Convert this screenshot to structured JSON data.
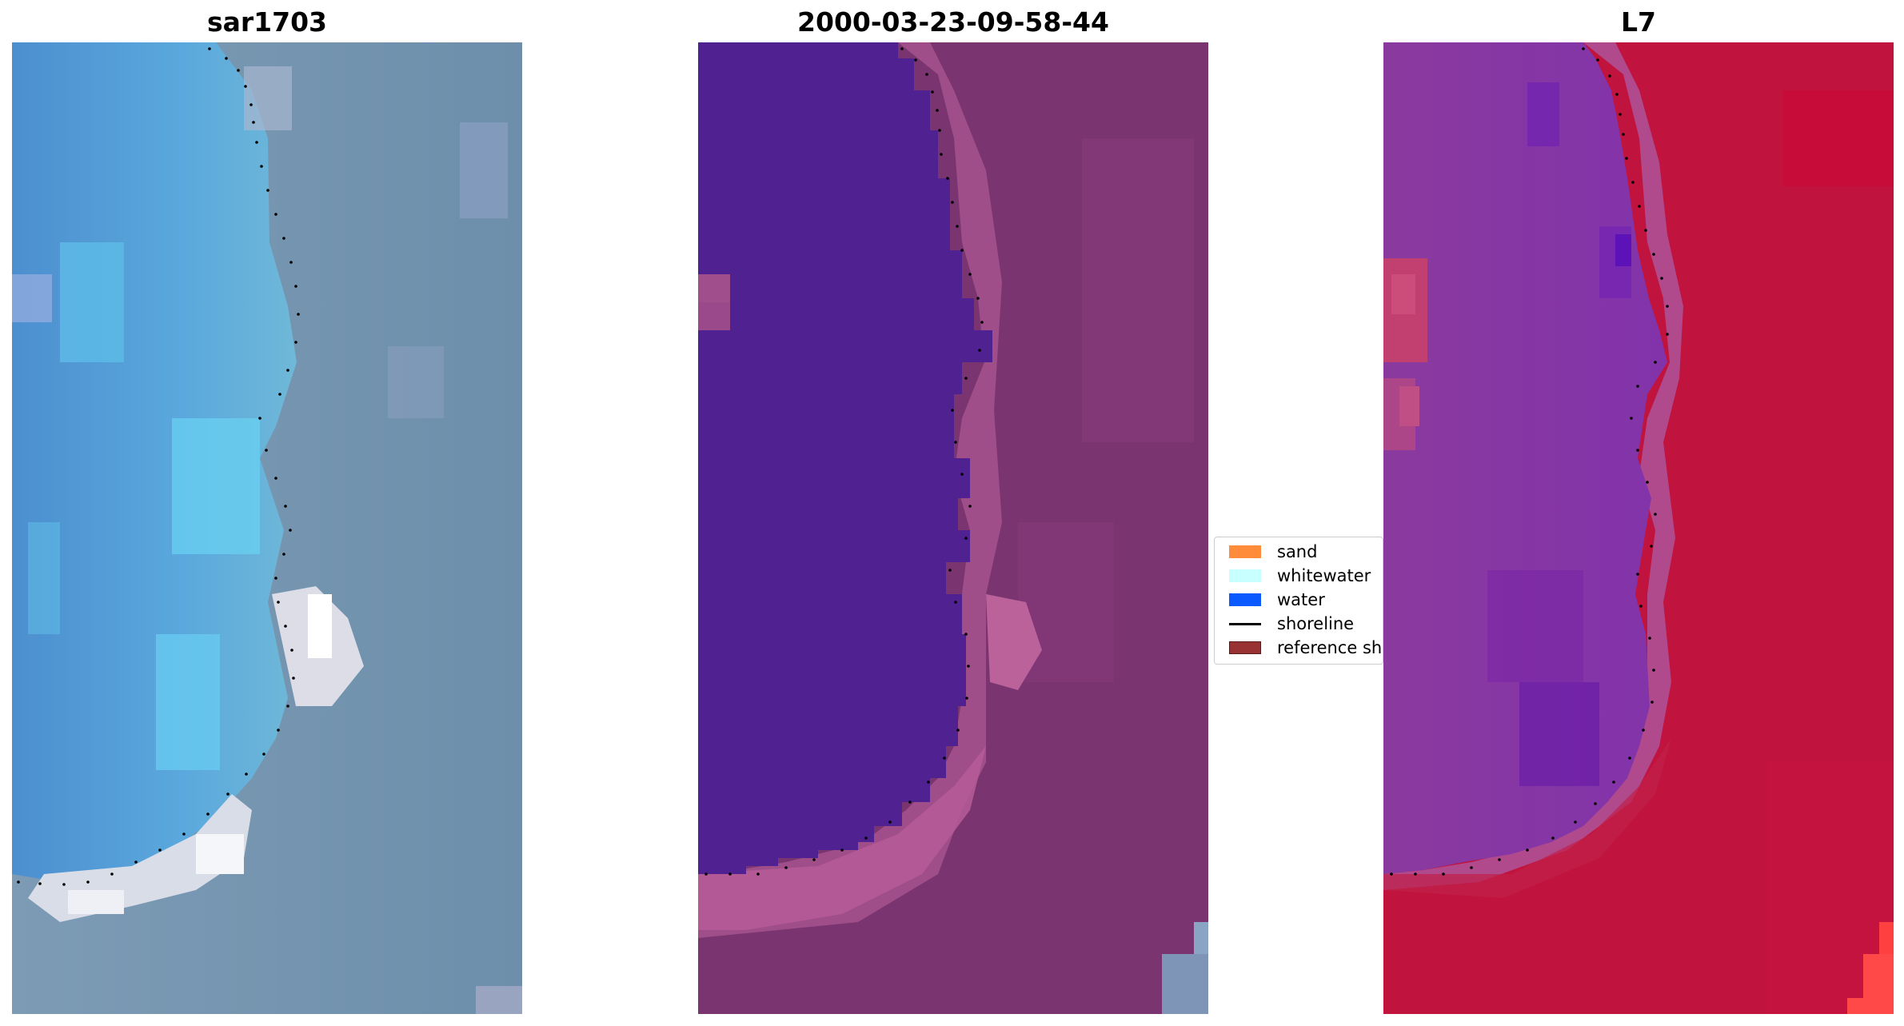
{
  "panels": [
    {
      "title": "sar1703"
    },
    {
      "title": "2000-03-23-09-58-44"
    },
    {
      "title": "L7"
    }
  ],
  "legend": {
    "items": [
      {
        "label": "sand",
        "color": "#ff8c3a"
      },
      {
        "label": "whitewater",
        "color": "#c8ffff"
      },
      {
        "label": "water",
        "color": "#0a5aff"
      },
      {
        "label": "shoreline",
        "color": "#000000"
      },
      {
        "label": "reference sho",
        "color": "#993333"
      }
    ]
  },
  "colors": {
    "sar_background": "#6e8faa",
    "sar_water": "#4f95cf",
    "sar_shallow": "#63c6e8",
    "sar_foam": "#e6e9f0",
    "class_water": "#502191",
    "class_land": "#7a3570",
    "class_sand_fringe": "#b05a96",
    "l7_land": "#c0143e",
    "l7_water": "#8a35a8",
    "l7_deep": "#6a1ca8",
    "l7_fringe": "#b24f92",
    "shoreline_dots": "#000000"
  }
}
